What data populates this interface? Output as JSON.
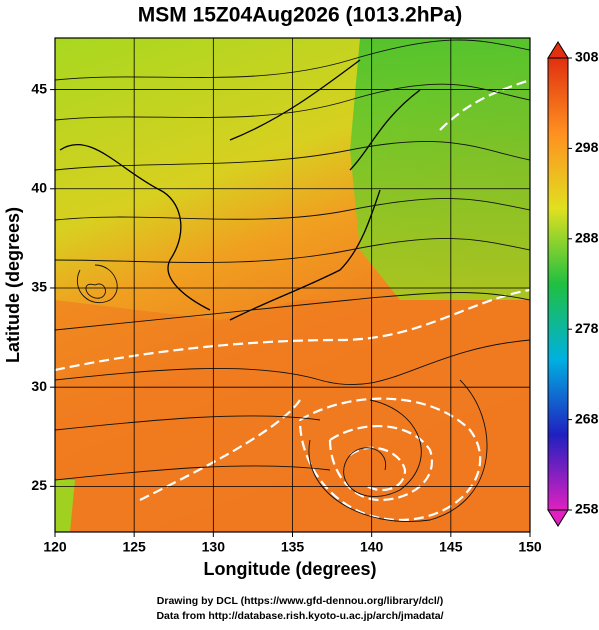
{
  "chart_data": {
    "type": "map",
    "title": "MSM 15Z04Aug2026 (1013.2hPa)",
    "x_label": "Longitude (degrees)",
    "y_label": "Latitude  (degrees)",
    "xlim": [
      120,
      150
    ],
    "xticks": [
      120,
      125,
      130,
      135,
      140,
      145,
      150
    ],
    "ylim": [
      22.7,
      47.6
    ],
    "yticks": [
      25,
      30,
      35,
      40,
      45
    ],
    "grid": true,
    "colorbar": {
      "lim": [
        258,
        308
      ],
      "ticks": [
        258,
        268,
        278,
        288,
        298,
        308
      ],
      "colors": [
        "#e020c0",
        "#2020c0",
        "#00b0e0",
        "#20c040",
        "#e0e020",
        "#ff9020",
        "#e03010"
      ]
    },
    "footer": [
      "Drawing by DCL (https://www.gfd-dennou.org/library/dcl/)",
      "Data from http://database.rish.kyoto-u.ac.jp/arch/jmadata/"
    ]
  }
}
